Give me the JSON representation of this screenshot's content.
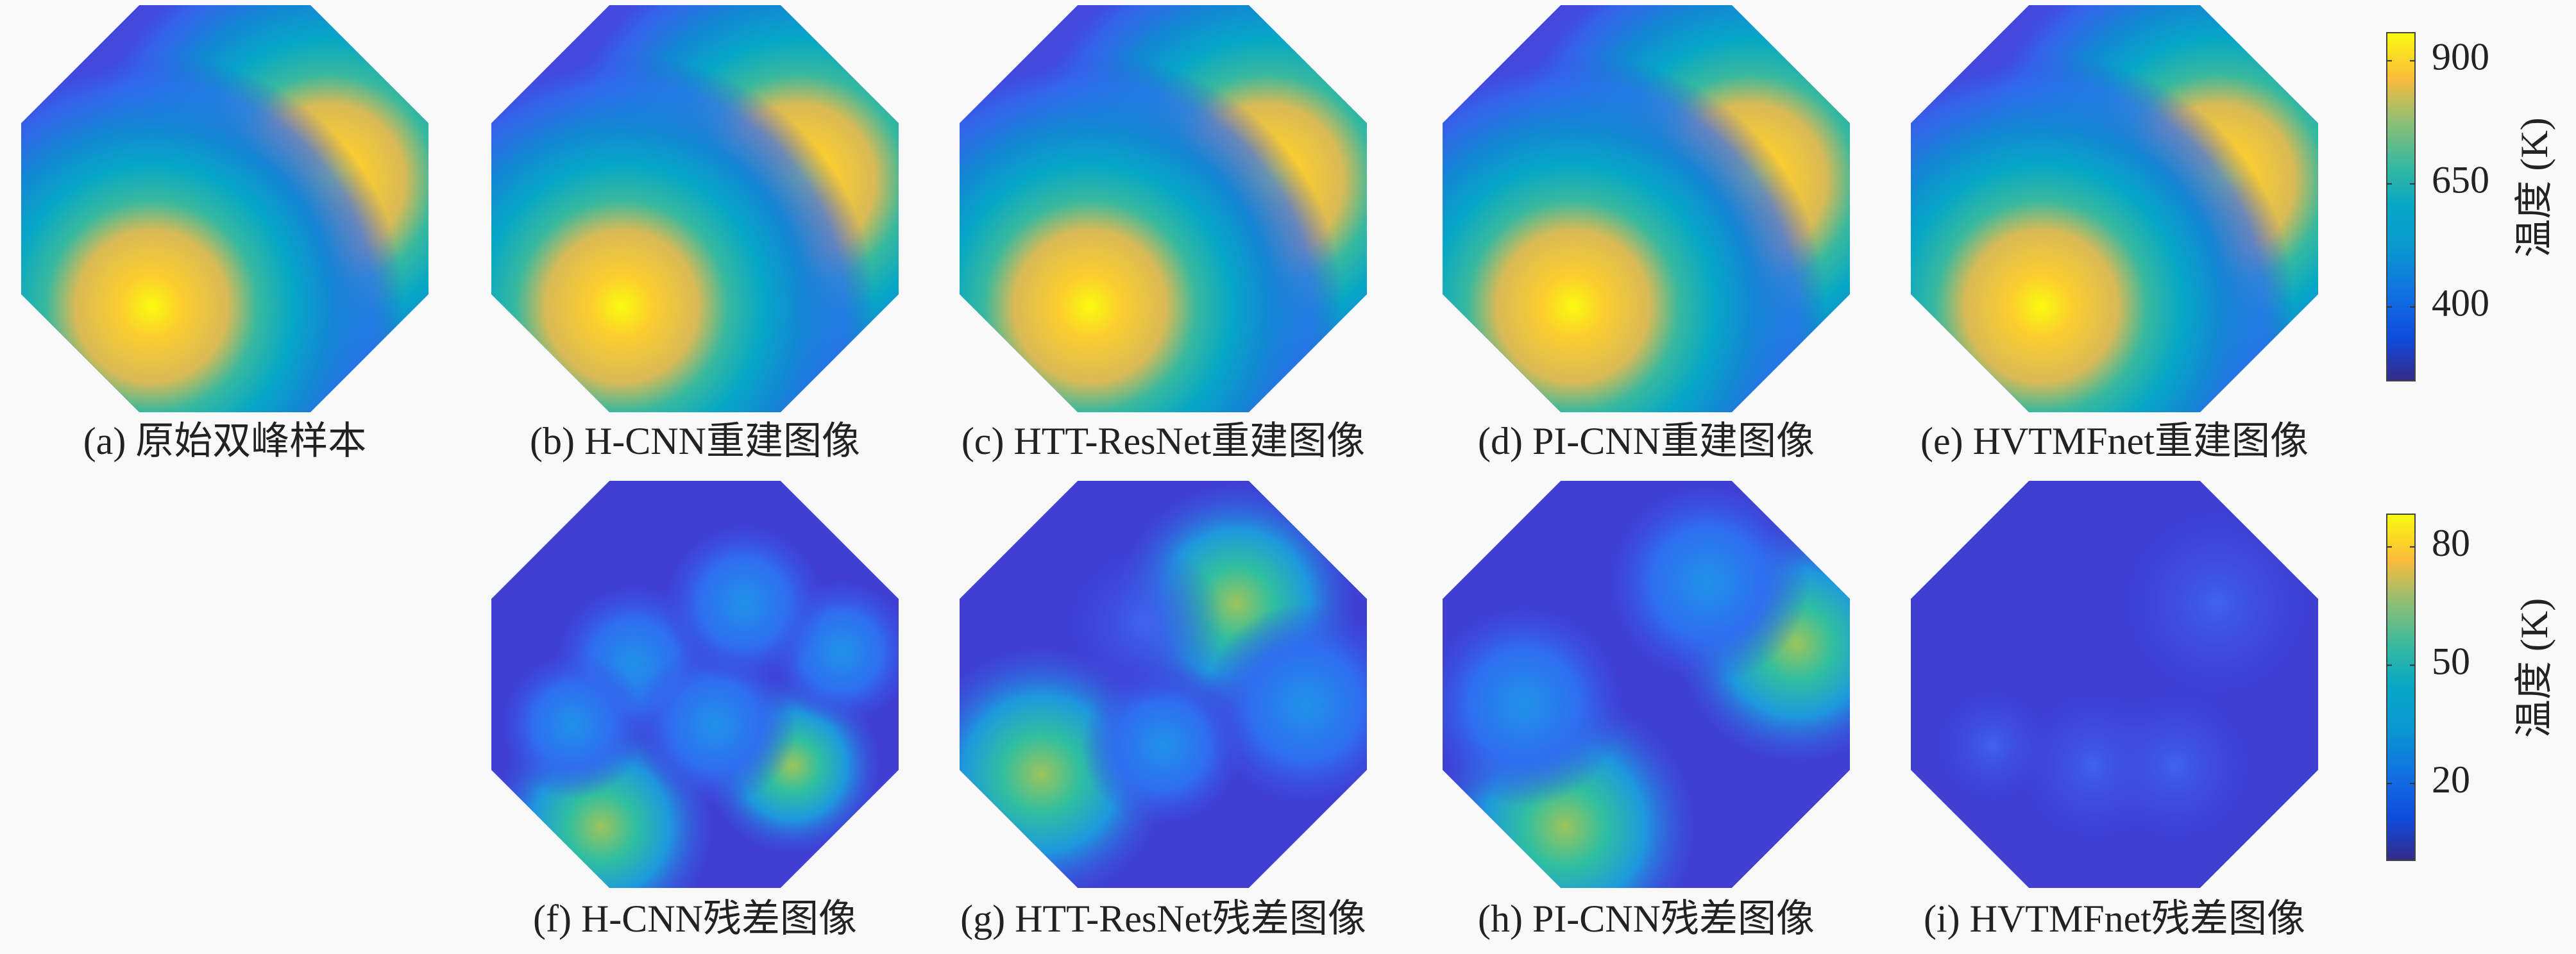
{
  "panels": [
    {
      "caption": "(a) 原始双峰样本"
    },
    {
      "caption": "(b) H-CNN重建图像"
    },
    {
      "caption": "(c) HTT-ResNet重建图像"
    },
    {
      "caption": "(d) PI-CNN重建图像"
    },
    {
      "caption": "(e) HVTMFnet重建图像"
    },
    {
      "caption": "(f) H-CNN残差图像"
    },
    {
      "caption": "(g) HTT-ResNet残差图像"
    },
    {
      "caption": "(h) PI-CNN残差图像"
    },
    {
      "caption": "(i) HVTMFnet残差图像"
    }
  ],
  "colorbars": [
    {
      "label": "温度 (K)",
      "lim": [
        250,
        957
      ],
      "ticks": [
        400,
        650,
        900
      ]
    },
    {
      "label": "温度 (K)",
      "lim": [
        0.5,
        88.3
      ],
      "ticks": [
        20,
        50,
        80
      ]
    }
  ]
}
